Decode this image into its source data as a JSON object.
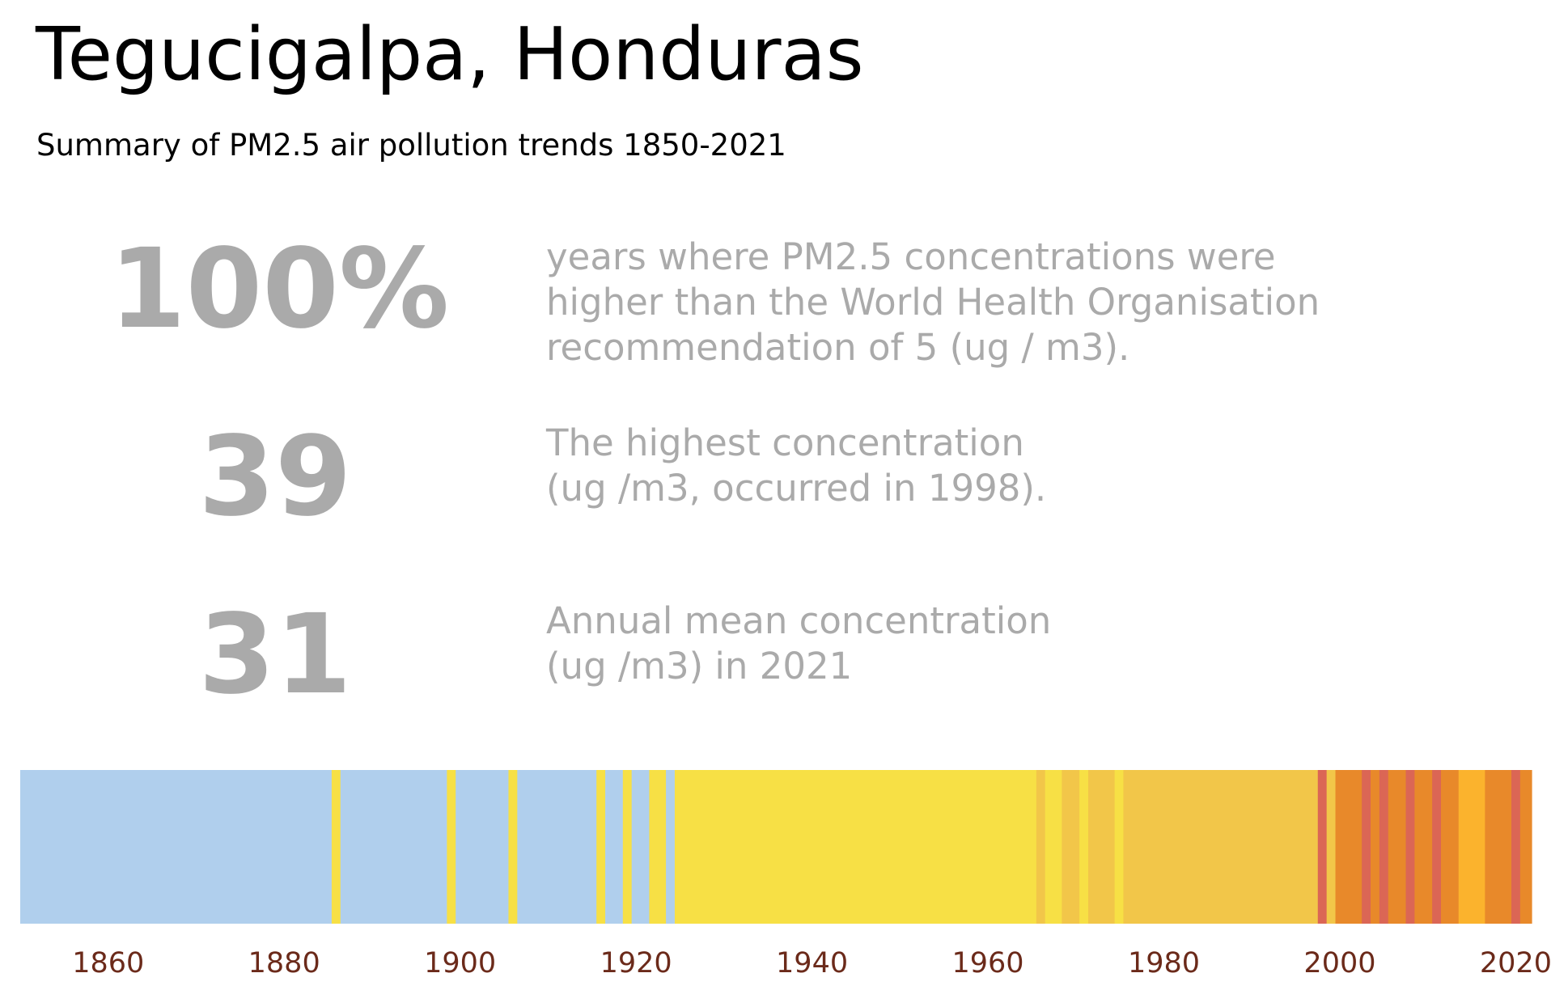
{
  "header": {
    "title": "Tegucigalpa, Honduras",
    "subtitle": "Summary of PM2.5 air pollution trends 1850-2021"
  },
  "stats": [
    {
      "value": "100%",
      "lines": [
        "years where PM2.5 concentrations were",
        "higher than the World Health Organisation",
        "recommendation of 5 (ug / m3)."
      ]
    },
    {
      "value": "39",
      "lines": [
        "The highest concentration",
        "(ug /m3, occurred in 1998)."
      ]
    },
    {
      "value": "31",
      "lines": [
        "Annual mean concentration",
        "(ug /m3) in 2021"
      ]
    }
  ],
  "colors": {
    "blue": "#b0cfed",
    "yellow": "#f7e045",
    "gold": "#f2c649",
    "amber": "#fbb32d",
    "orange": "#e8892a",
    "red": "#db6655",
    "tick_text": "#6b2a1a",
    "stat_text": "#aaaaaa"
  },
  "chart_data": {
    "type": "heatmap",
    "title": "",
    "xlabel": "",
    "ylabel": "",
    "xlim": [
      1850,
      2022
    ],
    "x_ticks": [
      "1860",
      "1880",
      "1900",
      "1920",
      "1940",
      "1960",
      "1980",
      "2000",
      "2020"
    ],
    "grid": false,
    "segments": [
      {
        "start": 1850,
        "end": 1885.4,
        "color": "blue"
      },
      {
        "start": 1885.4,
        "end": 1886.4,
        "color": "yellow"
      },
      {
        "start": 1886.4,
        "end": 1898.5,
        "color": "blue"
      },
      {
        "start": 1898.5,
        "end": 1899.5,
        "color": "yellow"
      },
      {
        "start": 1899.5,
        "end": 1905.5,
        "color": "blue"
      },
      {
        "start": 1905.5,
        "end": 1906.5,
        "color": "yellow"
      },
      {
        "start": 1906.5,
        "end": 1915.5,
        "color": "blue"
      },
      {
        "start": 1915.5,
        "end": 1916.5,
        "color": "yellow"
      },
      {
        "start": 1916.5,
        "end": 1918.5,
        "color": "blue"
      },
      {
        "start": 1918.5,
        "end": 1919.5,
        "color": "yellow"
      },
      {
        "start": 1919.5,
        "end": 1921.5,
        "color": "blue"
      },
      {
        "start": 1921.5,
        "end": 1923.4,
        "color": "yellow"
      },
      {
        "start": 1923.4,
        "end": 1924.4,
        "color": "blue"
      },
      {
        "start": 1924.4,
        "end": 1965.5,
        "color": "yellow"
      },
      {
        "start": 1965.5,
        "end": 1966.5,
        "color": "gold"
      },
      {
        "start": 1966.5,
        "end": 1968.4,
        "color": "yellow"
      },
      {
        "start": 1968.4,
        "end": 1970.4,
        "color": "gold"
      },
      {
        "start": 1970.4,
        "end": 1971.4,
        "color": "yellow"
      },
      {
        "start": 1971.4,
        "end": 1974.4,
        "color": "gold"
      },
      {
        "start": 1974.4,
        "end": 1975.4,
        "color": "yellow"
      },
      {
        "start": 1975.4,
        "end": 1997.5,
        "color": "gold"
      },
      {
        "start": 1997.5,
        "end": 1998.5,
        "color": "red"
      },
      {
        "start": 1998.5,
        "end": 1999.5,
        "color": "gold"
      },
      {
        "start": 1999.5,
        "end": 2002.5,
        "color": "orange"
      },
      {
        "start": 2002.5,
        "end": 2003.5,
        "color": "red"
      },
      {
        "start": 2003.5,
        "end": 2004.5,
        "color": "orange"
      },
      {
        "start": 2004.5,
        "end": 2005.5,
        "color": "red"
      },
      {
        "start": 2005.5,
        "end": 2007.5,
        "color": "orange"
      },
      {
        "start": 2007.5,
        "end": 2008.5,
        "color": "red"
      },
      {
        "start": 2008.5,
        "end": 2010.5,
        "color": "orange"
      },
      {
        "start": 2010.5,
        "end": 2011.5,
        "color": "red"
      },
      {
        "start": 2011.5,
        "end": 2013.5,
        "color": "orange"
      },
      {
        "start": 2013.5,
        "end": 2016.5,
        "color": "amber"
      },
      {
        "start": 2016.5,
        "end": 2019.5,
        "color": "orange"
      },
      {
        "start": 2019.5,
        "end": 2020.5,
        "color": "red"
      },
      {
        "start": 2020.5,
        "end": 2021.8,
        "color": "orange"
      }
    ]
  }
}
